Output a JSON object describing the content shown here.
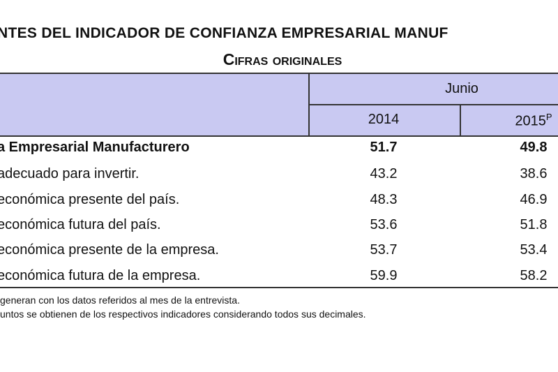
{
  "header": {
    "title": "NTES DEL INDICADOR DE CONFIANZA EMPRESARIAL MANUF",
    "subtitle": "Cifras originales"
  },
  "table": {
    "group_header": "Junio",
    "columns": [
      {
        "year": "2014"
      },
      {
        "year": "2015",
        "mark": "P"
      }
    ],
    "rows": [
      [
        "a Empresarial Manufacturero",
        "51.7",
        "49.8"
      ],
      [
        "adecuado para invertir.",
        "43.2",
        "38.6"
      ],
      [
        "económica presente del país.",
        "48.3",
        "46.9"
      ],
      [
        "económica futura del país.",
        "53.6",
        "51.8"
      ],
      [
        "económica presente de la empresa.",
        "53.7",
        "53.4"
      ],
      [
        "económica futura de la empresa.",
        "59.9",
        "58.2"
      ]
    ]
  },
  "notes": [
    "generan con los datos referidos al mes de la entrevista.",
    "untos se obtienen de los respectivos indicadores considerando todos sus decimales."
  ]
}
